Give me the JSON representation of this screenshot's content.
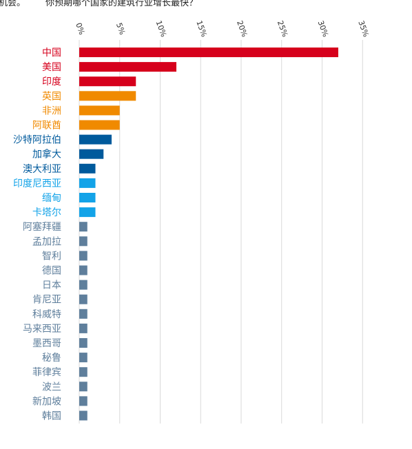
{
  "header": {
    "left_text": "机会。",
    "question": "你预期哪个国家的建筑行业增长最快？"
  },
  "colors": {
    "red": "#d6001c",
    "orange": "#f08a00",
    "navy": "#005a9c",
    "sky": "#13a3e8",
    "slate": "#5f7f9c",
    "grid": "#d9d9d9"
  },
  "chart_data": {
    "type": "bar",
    "orientation": "horizontal",
    "x_ticks": [
      "0%",
      "5%",
      "10%",
      "15%",
      "20%",
      "25%",
      "30%",
      "35%"
    ],
    "xlim": [
      0,
      35
    ],
    "grid": true,
    "categories": [
      "中国",
      "美国",
      "印度",
      "英国",
      "非洲",
      "阿联酋",
      "沙特阿拉伯",
      "加拿大",
      "澳大利亚",
      "印度尼西亚",
      "缅甸",
      "卡塔尔",
      "阿塞拜疆",
      "孟加拉",
      "智利",
      "德国",
      "日本",
      "肯尼亚",
      "科威特",
      "马来西亚",
      "墨西哥",
      "秘鲁",
      "菲律宾",
      "波兰",
      "新加坡",
      "韩国"
    ],
    "values": [
      32,
      12,
      7,
      7,
      5,
      5,
      4,
      3,
      2,
      2,
      2,
      2,
      1,
      1,
      1,
      1,
      1,
      1,
      1,
      1,
      1,
      1,
      1,
      1,
      1,
      1
    ],
    "bar_colors": [
      "red",
      "red",
      "red",
      "orange",
      "orange",
      "orange",
      "navy",
      "navy",
      "navy",
      "sky",
      "sky",
      "sky",
      "slate",
      "slate",
      "slate",
      "slate",
      "slate",
      "slate",
      "slate",
      "slate",
      "slate",
      "slate",
      "slate",
      "slate",
      "slate",
      "slate"
    ]
  }
}
